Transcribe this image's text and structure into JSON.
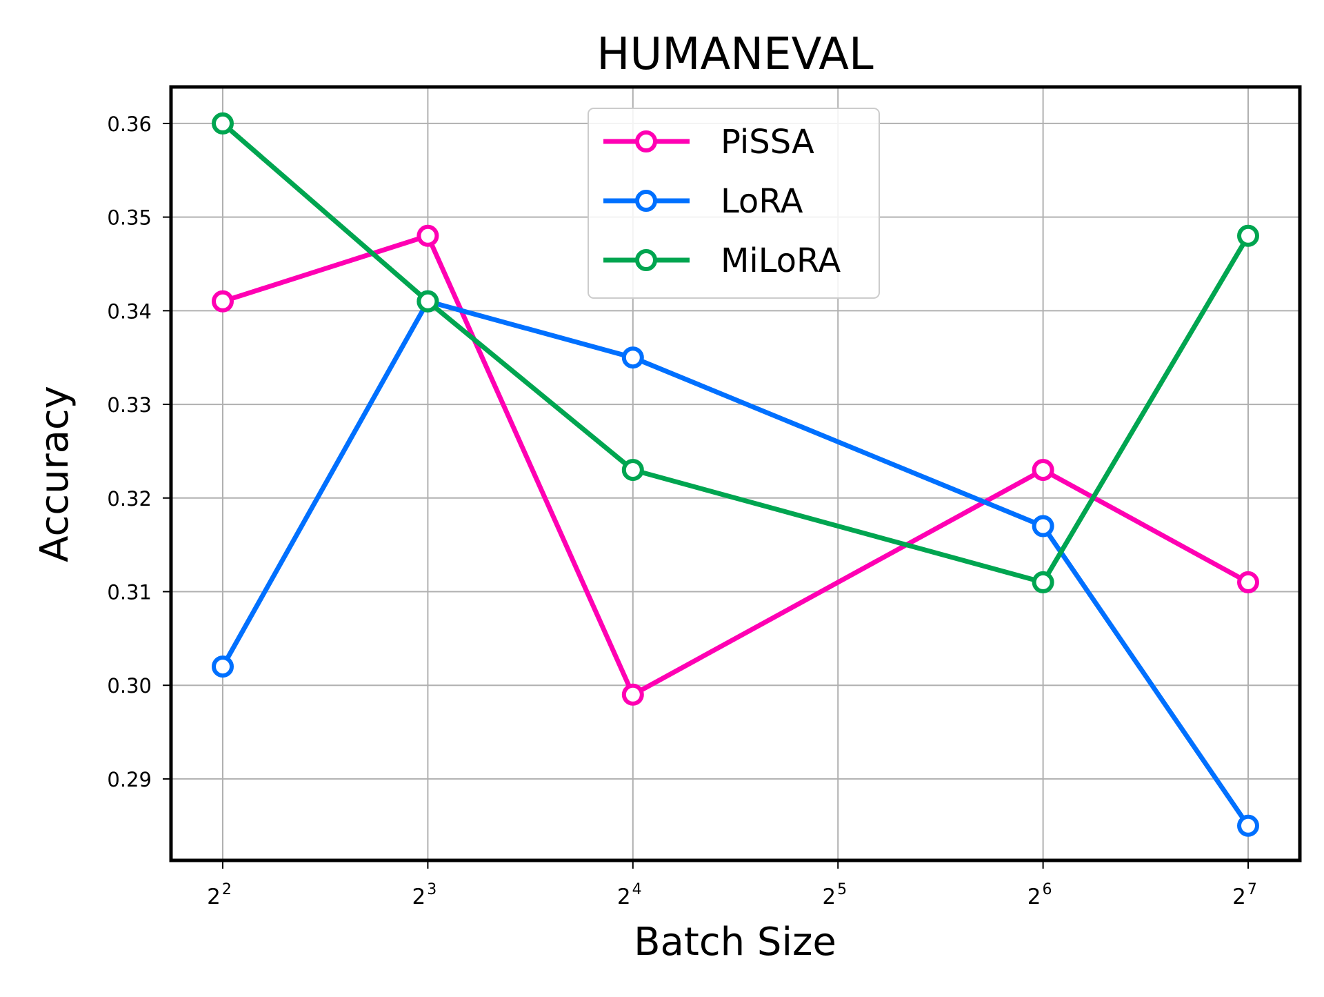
{
  "chart_data": {
    "type": "line",
    "title": "HUMANEVAL",
    "xlabel": "Batch Size",
    "ylabel": "Accuracy",
    "x_scale": "log2",
    "x": [
      4,
      8,
      16,
      32,
      64,
      128
    ],
    "x_tick_labels": [
      {
        "base": "2",
        "exp": "2"
      },
      {
        "base": "2",
        "exp": "3"
      },
      {
        "base": "2",
        "exp": "4"
      },
      {
        "base": "2",
        "exp": "5"
      },
      {
        "base": "2",
        "exp": "6"
      },
      {
        "base": "2",
        "exp": "7"
      }
    ],
    "y_ticks": [
      "0.29",
      "0.30",
      "0.31",
      "0.32",
      "0.33",
      "0.34",
      "0.35",
      "0.36"
    ],
    "ylim": [
      0.2813,
      0.3639
    ],
    "grid": true,
    "legend_position": "top-center",
    "series": [
      {
        "name": "PiSSA",
        "color": "#ff00b3",
        "points": [
          [
            4,
            0.341
          ],
          [
            8,
            0.348
          ],
          [
            16,
            0.299
          ],
          [
            64,
            0.323
          ],
          [
            128,
            0.311
          ]
        ]
      },
      {
        "name": "LoRA",
        "color": "#0070ff",
        "points": [
          [
            4,
            0.302
          ],
          [
            8,
            0.341
          ],
          [
            16,
            0.335
          ],
          [
            64,
            0.317
          ],
          [
            128,
            0.285
          ]
        ]
      },
      {
        "name": "MiLoRA",
        "color": "#00a550",
        "points": [
          [
            4,
            0.36
          ],
          [
            8,
            0.341
          ],
          [
            16,
            0.323
          ],
          [
            64,
            0.311
          ],
          [
            128,
            0.348
          ]
        ]
      }
    ]
  }
}
